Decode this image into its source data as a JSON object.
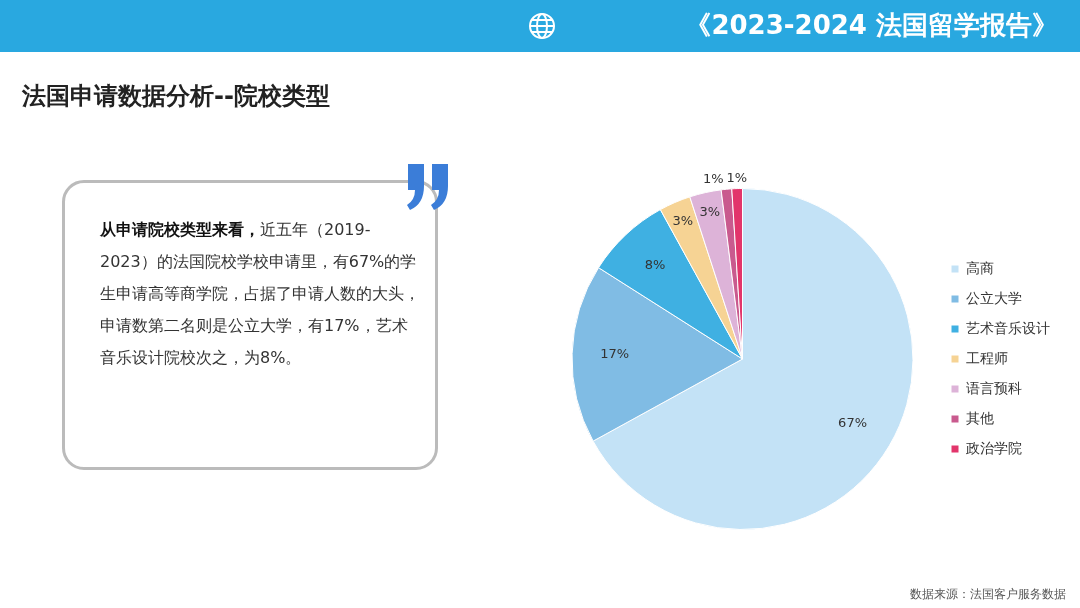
{
  "chart_data": {
    "type": "pie",
    "title": "法国申请数据分析--院校类型",
    "categories": [
      "高商",
      "公立大学",
      "艺术音乐设计",
      "工程师",
      "语言预科",
      "其他",
      "政治学院"
    ],
    "values": [
      67,
      17,
      8,
      3,
      3,
      1,
      1
    ],
    "value_labels": [
      "67%",
      "17%",
      "8%",
      "3%",
      "3%",
      "1%",
      "1%"
    ],
    "colors": [
      "#c3e2f6",
      "#80bce4",
      "#3fb0e2",
      "#f6d394",
      "#ddb3d8",
      "#c95a8e",
      "#e2356b"
    ],
    "legend": "right",
    "annotations": [
      "《2023-2024 法国留学报告》",
      "从申请院校类型来看，",
      "近五年（2019-2023）的法国院校学校申请里，有67%的学生申请高等商学院，占据了申请人数的大头，申请数第二名则是公立大学，有17%，艺术音乐设计院校次之，为8%。",
      "数据来源：法国客户服务数据"
    ]
  }
}
